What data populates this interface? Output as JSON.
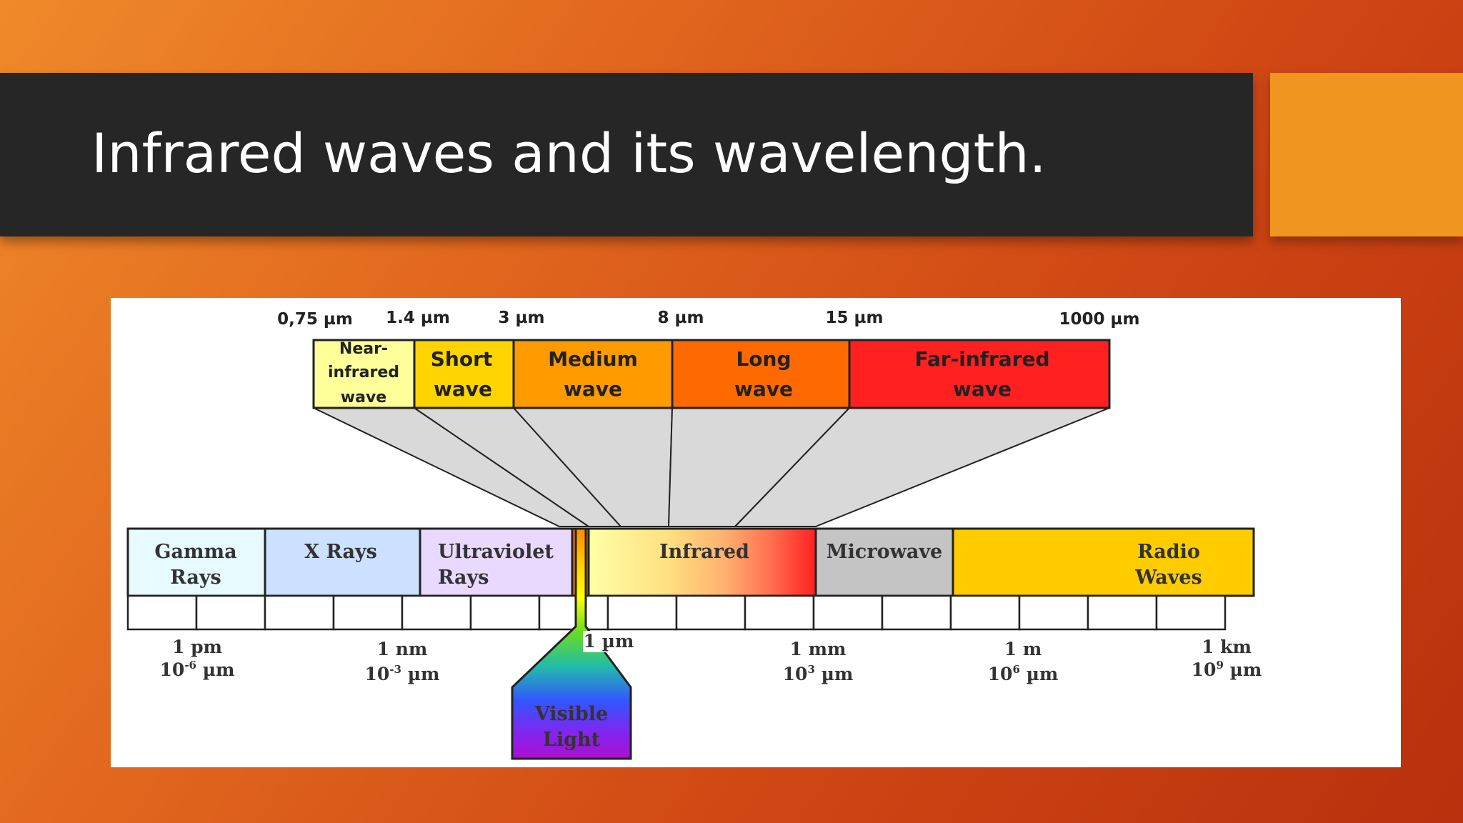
{
  "slide": {
    "title": "Infrared waves and its wavelength."
  },
  "infrared_bands": {
    "boundaries": [
      "0,75 µm",
      "1.4 µm",
      "3 µm",
      "8 µm",
      "15 µm",
      "1000 µm"
    ],
    "bands": [
      {
        "line1": "Near-",
        "line2": "infrared",
        "line3": "wave",
        "color": "#ffff99"
      },
      {
        "line1": "Short",
        "line2": "wave",
        "color": "#ffd400"
      },
      {
        "line1": "Medium",
        "line2": "wave",
        "color": "#ff9a00"
      },
      {
        "line1": "Long",
        "line2": "wave",
        "color": "#ff6a00"
      },
      {
        "line1": "Far-infrared",
        "line2": "wave",
        "color": "#ff2020"
      }
    ]
  },
  "spectrum": {
    "regions": [
      {
        "line1": "Gamma",
        "line2": "Rays",
        "color": "#e6faff"
      },
      {
        "line1": "X Rays",
        "line2": "",
        "color": "#cce0ff"
      },
      {
        "line1": "Ultraviolet",
        "line2": "Rays",
        "color": "#ead9ff"
      },
      {
        "line1": "Infrared",
        "line2": "",
        "color": "#ffe680"
      },
      {
        "line1": "Microwave",
        "line2": "",
        "color": "#c4c4c4"
      },
      {
        "line1": "Radio",
        "line2": "Waves",
        "color": "#ffcc00"
      }
    ],
    "visible_light": {
      "line1": "Visible",
      "line2": "Light"
    },
    "scale": [
      {
        "line1": "1 pm",
        "line2": "10-6 µm"
      },
      {
        "line1": "1 nm",
        "line2": "10-3 µm"
      },
      {
        "line1": "1 µm",
        "line2": ""
      },
      {
        "line1": "1 mm",
        "line2": "103 µm"
      },
      {
        "line1": "1 m",
        "line2": "106 µm"
      },
      {
        "line1": "1 km",
        "line2": "109 µm"
      }
    ]
  },
  "colors": {
    "title_bar": "#262626",
    "accent_box": "#f0951f",
    "funnel_fill": "#d9d9d9"
  }
}
